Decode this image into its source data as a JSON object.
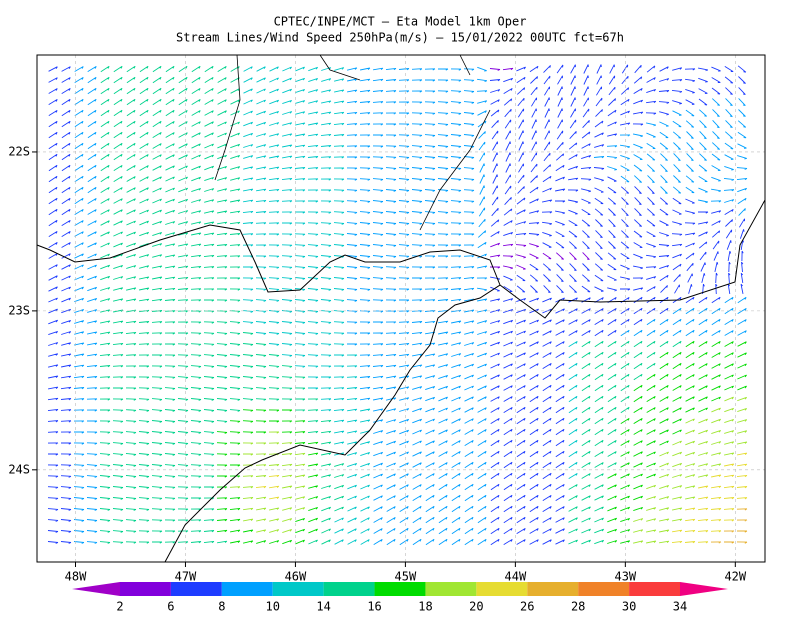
{
  "map": {
    "title": "CPTEC/INPE/MCT —  Eta Model 1km Oper",
    "subtitle": "Stream Lines/Wind Speed 250hPa(m/s) — 15/01/2022 00UTC fct=67h",
    "xlim": [
      -48.35,
      -41.73
    ],
    "ylim": [
      -24.58,
      -21.39
    ],
    "xticks": [
      {
        "value": -48,
        "label": "48W"
      },
      {
        "value": -47,
        "label": "47W"
      },
      {
        "value": -46,
        "label": "46W"
      },
      {
        "value": -45,
        "label": "45W"
      },
      {
        "value": -44,
        "label": "44W"
      },
      {
        "value": -43,
        "label": "43W"
      },
      {
        "value": -42,
        "label": "42W"
      }
    ],
    "yticks": [
      {
        "value": -22,
        "label": "22S"
      },
      {
        "value": -23,
        "label": "23S"
      },
      {
        "value": -24,
        "label": "24S"
      }
    ],
    "grid": true
  },
  "colorbar": {
    "levels": [
      2,
      6,
      8,
      10,
      14,
      16,
      18,
      20,
      26,
      28,
      30,
      34
    ],
    "colors": [
      "#a000c8",
      "#8200dc",
      "#1e3cff",
      "#00a0ff",
      "#00c8c8",
      "#00d28c",
      "#00dc00",
      "#a0e632",
      "#e6dc32",
      "#e6af2d",
      "#f08228",
      "#fa3c3c",
      "#f00082"
    ]
  }
}
